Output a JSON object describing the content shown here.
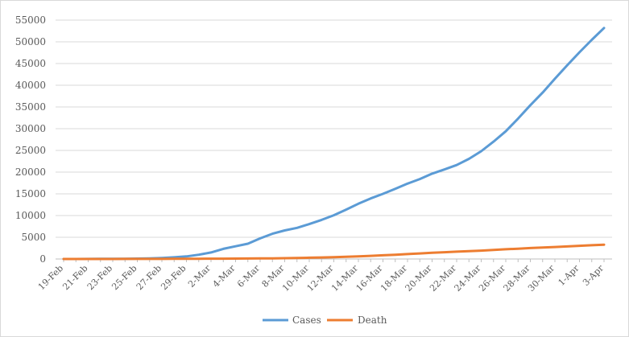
{
  "chart_data": {
    "type": "line",
    "title": "",
    "xlabel": "",
    "ylabel": "",
    "ylim": [
      0,
      55000
    ],
    "yticks": [
      0,
      5000,
      10000,
      15000,
      20000,
      25000,
      30000,
      35000,
      40000,
      45000,
      50000,
      55000
    ],
    "grid": "horizontal",
    "legend_position": "bottom",
    "x": [
      "19-Feb",
      "20-Feb",
      "21-Feb",
      "22-Feb",
      "23-Feb",
      "24-Feb",
      "25-Feb",
      "26-Feb",
      "27-Feb",
      "28-Feb",
      "29-Feb",
      "1-Mar",
      "2-Mar",
      "3-Mar",
      "4-Mar",
      "5-Mar",
      "6-Mar",
      "7-Mar",
      "8-Mar",
      "9-Mar",
      "10-Mar",
      "11-Mar",
      "12-Mar",
      "13-Mar",
      "14-Mar",
      "15-Mar",
      "16-Mar",
      "17-Mar",
      "18-Mar",
      "19-Mar",
      "20-Mar",
      "21-Mar",
      "22-Mar",
      "23-Mar",
      "24-Mar",
      "25-Mar",
      "26-Mar",
      "27-Mar",
      "28-Mar",
      "29-Mar",
      "30-Mar",
      "31-Mar",
      "1-Apr",
      "2-Apr",
      "3-Apr"
    ],
    "x_tick_labels": [
      "19-Feb",
      "21-Feb",
      "23-Feb",
      "25-Feb",
      "27-Feb",
      "29-Feb",
      "2-Mar",
      "4-Mar",
      "6-Mar",
      "8-Mar",
      "10-Mar",
      "12-Mar",
      "14-Mar",
      "16-Mar",
      "18-Mar",
      "20-Mar",
      "22-Mar",
      "24-Mar",
      "26-Mar",
      "28-Mar",
      "30-Mar",
      "1-Apr",
      "3-Apr"
    ],
    "series": [
      {
        "name": "Cases",
        "color": "#5b9bd5",
        "values": [
          2,
          5,
          18,
          28,
          43,
          61,
          95,
          139,
          245,
          388,
          593,
          978,
          1501,
          2336,
          2922,
          3513,
          4747,
          5823,
          6566,
          7161,
          8042,
          9000,
          10075,
          11364,
          12729,
          13938,
          14991,
          16169,
          17361,
          18407,
          19644,
          20610,
          21638,
          23049,
          24811,
          27017,
          29406,
          32332,
          35408,
          38309,
          41495,
          44605,
          47593,
          50468,
          53183
        ]
      },
      {
        "name": "Death",
        "color": "#ed7d31",
        "values": [
          1,
          2,
          4,
          5,
          8,
          12,
          16,
          19,
          26,
          34,
          43,
          54,
          66,
          77,
          92,
          107,
          124,
          145,
          194,
          237,
          291,
          354,
          429,
          514,
          611,
          724,
          853,
          988,
          1135,
          1284,
          1433,
          1556,
          1685,
          1812,
          1934,
          2077,
          2234,
          2378,
          2517,
          2640,
          2757,
          2898,
          3036,
          3160,
          3294
        ]
      }
    ]
  }
}
